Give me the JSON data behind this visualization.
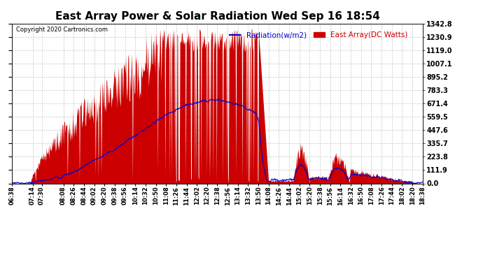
{
  "title": "East Array Power & Solar Radiation Wed Sep 16 18:54",
  "copyright": "Copyright 2020 Cartronics.com",
  "legend_blue": "Radiation(w/m2)",
  "legend_red": "East Array(DC Watts)",
  "right_yticks": [
    0.0,
    111.9,
    223.8,
    335.7,
    447.6,
    559.5,
    671.4,
    783.3,
    895.2,
    1007.1,
    1119.0,
    1230.9,
    1342.8
  ],
  "ymax": 1342.8,
  "ymin": 0.0,
  "background_color": "#ffffff",
  "plot_bg_color": "#ffffff",
  "grid_color": "#aaaaaa",
  "red_color": "#cc0000",
  "blue_color": "#0000cc",
  "title_fontsize": 11,
  "xtick_labels": [
    "06:38",
    "07:14",
    "07:30",
    "08:08",
    "08:26",
    "08:44",
    "09:02",
    "09:20",
    "09:38",
    "09:56",
    "10:14",
    "10:32",
    "10:50",
    "11:08",
    "11:26",
    "11:44",
    "12:02",
    "12:20",
    "12:38",
    "12:56",
    "13:14",
    "13:32",
    "13:50",
    "14:08",
    "14:26",
    "14:44",
    "15:02",
    "15:20",
    "15:38",
    "15:56",
    "16:14",
    "16:32",
    "16:50",
    "17:08",
    "17:26",
    "17:44",
    "18:02",
    "18:20",
    "18:38"
  ]
}
